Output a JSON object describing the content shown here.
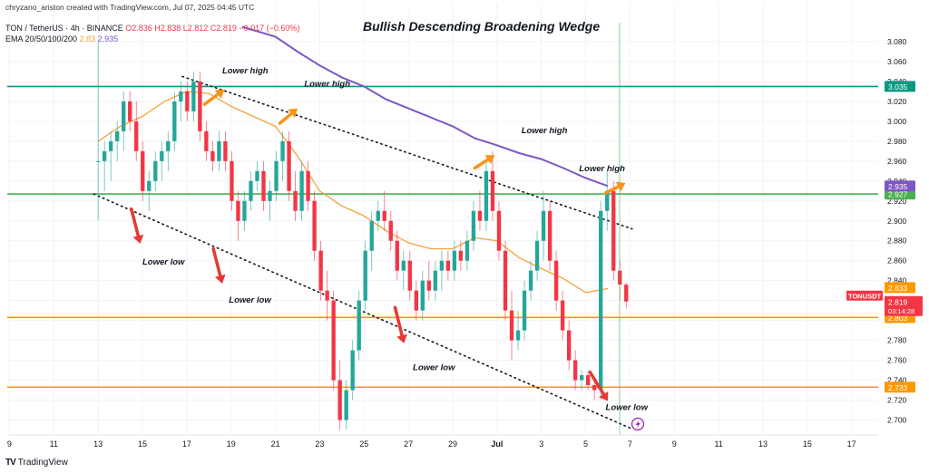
{
  "header": {
    "credit": "chryzano_ariston created with TradingView.com, Jul 07, 2025 04:45 UTC",
    "symbol_line": "TON / TetherUS · 4h · BINANCE",
    "ohlc": "O2.836  H2.838  L2.812  C2.819  −0.017 (−0.60%)",
    "ema_label": "EMA 20/50/100/200",
    "ema_value_1": "2.83",
    "ema_value_2": "2.935"
  },
  "footer": {
    "brand": "TradingView",
    "brand_logo": "TV"
  },
  "colors": {
    "up": "#26a69a",
    "down": "#f23645",
    "ema_orange": "#f7a23b",
    "ema_purple": "#7e57c2",
    "teal_line": "#089981",
    "green_line": "#4caf50",
    "orange_line": "#ff9800",
    "arrow_up": "#f7931a",
    "arrow_down": "#e53935"
  },
  "chart_data": {
    "type": "candlestick",
    "title": "Bullish Descending Broadening Wedge",
    "symbol": "TONUSDT",
    "timeframe": "4h",
    "ylim": [
      2.685,
      3.1
    ],
    "y_ticks": [
      "2.700",
      "2.720",
      "2.740",
      "2.760",
      "2.780",
      "2.800",
      "2.820",
      "2.840",
      "2.860",
      "2.880",
      "2.900",
      "2.920",
      "2.940",
      "2.960",
      "2.980",
      "3.000",
      "3.020",
      "3.040",
      "3.060",
      "3.080"
    ],
    "x_ticks": [
      {
        "label": "9",
        "day": 9
      },
      {
        "label": "11",
        "day": 11
      },
      {
        "label": "13",
        "day": 13
      },
      {
        "label": "15",
        "day": 15
      },
      {
        "label": "17",
        "day": 17
      },
      {
        "label": "19",
        "day": 19
      },
      {
        "label": "21",
        "day": 21
      },
      {
        "label": "23",
        "day": 23
      },
      {
        "label": "25",
        "day": 25
      },
      {
        "label": "27",
        "day": 27
      },
      {
        "label": "29",
        "day": 29
      },
      {
        "label": "Jul",
        "day": 31
      },
      {
        "label": "3",
        "day": 33
      },
      {
        "label": "5",
        "day": 35
      },
      {
        "label": "7",
        "day": 37
      },
      {
        "label": "9",
        "day": 39
      },
      {
        "label": "11",
        "day": 41
      },
      {
        "label": "13",
        "day": 43
      },
      {
        "label": "15",
        "day": 45
      },
      {
        "label": "17",
        "day": 47
      }
    ],
    "horizontal_levels": [
      {
        "value": 3.035,
        "label": "3.035",
        "color": "#089981"
      },
      {
        "value": 2.927,
        "label": "2.927",
        "color": "#4caf50"
      },
      {
        "value": 2.803,
        "label": "2.803",
        "color": "#ff9800"
      },
      {
        "value": 2.733,
        "label": "2.733",
        "color": "#ff9800"
      }
    ],
    "price_badges": [
      {
        "value": 2.935,
        "label": "2.935",
        "color": "#7e57c2"
      },
      {
        "value": 2.833,
        "label": "2.833",
        "color": "#ff9800"
      },
      {
        "value": 2.819,
        "label": "2.819",
        "color": "#f23645",
        "tag": "TONUSDT",
        "sub": "03:14:28"
      }
    ],
    "trendlines": [
      {
        "name": "upper",
        "from": [
          16.8,
          3.045
        ],
        "to": [
          37.1,
          2.892
        ]
      },
      {
        "name": "lower",
        "from": [
          12.8,
          2.927
        ],
        "to": [
          37.0,
          2.692
        ]
      }
    ],
    "annotations": [
      {
        "text": "Lower high",
        "day": 18.6,
        "price": 3.048
      },
      {
        "text": "Lower high",
        "day": 22.3,
        "price": 3.035
      },
      {
        "text": "Lower high",
        "day": 32.1,
        "price": 2.988
      },
      {
        "text": "Lower high",
        "day": 34.7,
        "price": 2.95
      },
      {
        "text": "Lower low",
        "day": 15.0,
        "price": 2.856
      },
      {
        "text": "Lower low",
        "day": 18.9,
        "price": 2.818
      },
      {
        "text": "Lower low",
        "day": 27.2,
        "price": 2.75
      },
      {
        "text": "Lower low",
        "day": 35.9,
        "price": 2.71
      }
    ],
    "arrows": [
      {
        "dir": "up",
        "from": [
          17.8,
          3.017
        ],
        "to": [
          18.7,
          3.032
        ]
      },
      {
        "dir": "up",
        "from": [
          21.2,
          2.998
        ],
        "to": [
          22.0,
          3.013
        ]
      },
      {
        "dir": "up",
        "from": [
          30.0,
          2.953
        ],
        "to": [
          30.9,
          2.966
        ]
      },
      {
        "dir": "up",
        "from": [
          35.9,
          2.928
        ],
        "to": [
          36.8,
          2.938
        ]
      },
      {
        "dir": "down",
        "from": [
          14.5,
          2.912
        ],
        "to": [
          14.9,
          2.877
        ]
      },
      {
        "dir": "down",
        "from": [
          18.2,
          2.872
        ],
        "to": [
          18.6,
          2.837
        ]
      },
      {
        "dir": "down",
        "from": [
          26.4,
          2.813
        ],
        "to": [
          26.8,
          2.777
        ]
      },
      {
        "dir": "down",
        "from": [
          35.2,
          2.748
        ],
        "to": [
          36.0,
          2.719
        ]
      }
    ],
    "ema_fast": [
      [
        13,
        2.98
      ],
      [
        14,
        2.995
      ],
      [
        15,
        3.005
      ],
      [
        16,
        3.02
      ],
      [
        17,
        3.03
      ],
      [
        18,
        3.028
      ],
      [
        19,
        3.015
      ],
      [
        20,
        3.005
      ],
      [
        21,
        2.995
      ],
      [
        22,
        2.965
      ],
      [
        23,
        2.93
      ],
      [
        24,
        2.915
      ],
      [
        25,
        2.905
      ],
      [
        26,
        2.89
      ],
      [
        27,
        2.878
      ],
      [
        28,
        2.872
      ],
      [
        29,
        2.872
      ],
      [
        30,
        2.883
      ],
      [
        31,
        2.88
      ],
      [
        32,
        2.863
      ],
      [
        33,
        2.852
      ],
      [
        34,
        2.842
      ],
      [
        35,
        2.828
      ],
      [
        36,
        2.832
      ]
    ],
    "ema_slow": [
      [
        19.5,
        3.095
      ],
      [
        21,
        3.085
      ],
      [
        22,
        3.07
      ],
      [
        23,
        3.056
      ],
      [
        24,
        3.044
      ],
      [
        25,
        3.035
      ],
      [
        26,
        3.022
      ],
      [
        27,
        3.013
      ],
      [
        28,
        3.004
      ],
      [
        29,
        2.995
      ],
      [
        30,
        2.983
      ],
      [
        31,
        2.976
      ],
      [
        32,
        2.968
      ],
      [
        33,
        2.962
      ],
      [
        34,
        2.953
      ],
      [
        35,
        2.943
      ],
      [
        36,
        2.935
      ]
    ],
    "candles": [
      {
        "o": 2.96,
        "h": 3.08,
        "l": 2.9,
        "c": 2.96
      },
      {
        "o": 2.96,
        "h": 2.98,
        "l": 2.93,
        "c": 2.97
      },
      {
        "o": 2.97,
        "h": 2.99,
        "l": 2.94,
        "c": 2.98
      },
      {
        "o": 2.98,
        "h": 3.0,
        "l": 2.96,
        "c": 2.99
      },
      {
        "o": 2.99,
        "h": 3.03,
        "l": 2.97,
        "c": 3.02
      },
      {
        "o": 3.02,
        "h": 3.03,
        "l": 2.99,
        "c": 3.0
      },
      {
        "o": 3.0,
        "h": 3.02,
        "l": 2.96,
        "c": 2.97
      },
      {
        "o": 2.97,
        "h": 2.98,
        "l": 2.92,
        "c": 2.93
      },
      {
        "o": 2.93,
        "h": 2.95,
        "l": 2.91,
        "c": 2.94
      },
      {
        "o": 2.94,
        "h": 2.97,
        "l": 2.93,
        "c": 2.96
      },
      {
        "o": 2.96,
        "h": 2.98,
        "l": 2.94,
        "c": 2.97
      },
      {
        "o": 2.97,
        "h": 2.99,
        "l": 2.95,
        "c": 2.98
      },
      {
        "o": 2.98,
        "h": 3.03,
        "l": 2.97,
        "c": 3.02
      },
      {
        "o": 3.02,
        "h": 3.04,
        "l": 3.0,
        "c": 3.03
      },
      {
        "o": 3.03,
        "h": 3.04,
        "l": 3.0,
        "c": 3.01
      },
      {
        "o": 3.01,
        "h": 3.05,
        "l": 3.0,
        "c": 3.04
      },
      {
        "o": 3.04,
        "h": 3.05,
        "l": 2.98,
        "c": 2.99
      },
      {
        "o": 2.99,
        "h": 3.0,
        "l": 2.96,
        "c": 2.97
      },
      {
        "o": 2.97,
        "h": 2.98,
        "l": 2.95,
        "c": 2.96
      },
      {
        "o": 2.96,
        "h": 2.99,
        "l": 2.95,
        "c": 2.98
      },
      {
        "o": 2.98,
        "h": 2.99,
        "l": 2.95,
        "c": 2.96
      },
      {
        "o": 2.96,
        "h": 2.97,
        "l": 2.91,
        "c": 2.92
      },
      {
        "o": 2.92,
        "h": 2.93,
        "l": 2.88,
        "c": 2.9
      },
      {
        "o": 2.9,
        "h": 2.93,
        "l": 2.89,
        "c": 2.92
      },
      {
        "o": 2.92,
        "h": 2.95,
        "l": 2.91,
        "c": 2.94
      },
      {
        "o": 2.94,
        "h": 2.96,
        "l": 2.93,
        "c": 2.95
      },
      {
        "o": 2.95,
        "h": 2.96,
        "l": 2.91,
        "c": 2.92
      },
      {
        "o": 2.92,
        "h": 2.94,
        "l": 2.9,
        "c": 2.93
      },
      {
        "o": 2.93,
        "h": 2.97,
        "l": 2.92,
        "c": 2.96
      },
      {
        "o": 2.96,
        "h": 2.99,
        "l": 2.94,
        "c": 2.98
      },
      {
        "o": 2.98,
        "h": 2.99,
        "l": 2.92,
        "c": 2.93
      },
      {
        "o": 2.93,
        "h": 2.95,
        "l": 2.9,
        "c": 2.91
      },
      {
        "o": 2.91,
        "h": 2.96,
        "l": 2.9,
        "c": 2.95
      },
      {
        "o": 2.95,
        "h": 2.96,
        "l": 2.91,
        "c": 2.92
      },
      {
        "o": 2.92,
        "h": 2.93,
        "l": 2.86,
        "c": 2.87
      },
      {
        "o": 2.87,
        "h": 2.88,
        "l": 2.82,
        "c": 2.83
      },
      {
        "o": 2.83,
        "h": 2.85,
        "l": 2.8,
        "c": 2.82
      },
      {
        "o": 2.82,
        "h": 2.83,
        "l": 2.73,
        "c": 2.74
      },
      {
        "o": 2.74,
        "h": 2.76,
        "l": 2.69,
        "c": 2.7
      },
      {
        "o": 2.7,
        "h": 2.74,
        "l": 2.69,
        "c": 2.73
      },
      {
        "o": 2.73,
        "h": 2.78,
        "l": 2.72,
        "c": 2.77
      },
      {
        "o": 2.77,
        "h": 2.83,
        "l": 2.76,
        "c": 2.82
      },
      {
        "o": 2.82,
        "h": 2.88,
        "l": 2.81,
        "c": 2.87
      },
      {
        "o": 2.87,
        "h": 2.91,
        "l": 2.85,
        "c": 2.9
      },
      {
        "o": 2.9,
        "h": 2.92,
        "l": 2.89,
        "c": 2.91
      },
      {
        "o": 2.91,
        "h": 2.93,
        "l": 2.89,
        "c": 2.9
      },
      {
        "o": 2.9,
        "h": 2.91,
        "l": 2.87,
        "c": 2.88
      },
      {
        "o": 2.88,
        "h": 2.89,
        "l": 2.84,
        "c": 2.85
      },
      {
        "o": 2.85,
        "h": 2.87,
        "l": 2.83,
        "c": 2.86
      },
      {
        "o": 2.86,
        "h": 2.87,
        "l": 2.82,
        "c": 2.83
      },
      {
        "o": 2.83,
        "h": 2.84,
        "l": 2.8,
        "c": 2.81
      },
      {
        "o": 2.81,
        "h": 2.85,
        "l": 2.8,
        "c": 2.84
      },
      {
        "o": 2.84,
        "h": 2.86,
        "l": 2.82,
        "c": 2.83
      },
      {
        "o": 2.83,
        "h": 2.86,
        "l": 2.82,
        "c": 2.85
      },
      {
        "o": 2.85,
        "h": 2.87,
        "l": 2.83,
        "c": 2.86
      },
      {
        "o": 2.86,
        "h": 2.87,
        "l": 2.84,
        "c": 2.85
      },
      {
        "o": 2.85,
        "h": 2.88,
        "l": 2.84,
        "c": 2.87
      },
      {
        "o": 2.87,
        "h": 2.88,
        "l": 2.85,
        "c": 2.86
      },
      {
        "o": 2.86,
        "h": 2.89,
        "l": 2.85,
        "c": 2.88
      },
      {
        "o": 2.88,
        "h": 2.92,
        "l": 2.87,
        "c": 2.91
      },
      {
        "o": 2.91,
        "h": 2.93,
        "l": 2.89,
        "c": 2.9
      },
      {
        "o": 2.9,
        "h": 2.96,
        "l": 2.89,
        "c": 2.95
      },
      {
        "o": 2.95,
        "h": 2.97,
        "l": 2.9,
        "c": 2.91
      },
      {
        "o": 2.91,
        "h": 2.92,
        "l": 2.86,
        "c": 2.87
      },
      {
        "o": 2.87,
        "h": 2.88,
        "l": 2.8,
        "c": 2.81
      },
      {
        "o": 2.81,
        "h": 2.83,
        "l": 2.76,
        "c": 2.78
      },
      {
        "o": 2.78,
        "h": 2.81,
        "l": 2.77,
        "c": 2.79
      },
      {
        "o": 2.79,
        "h": 2.84,
        "l": 2.78,
        "c": 2.83
      },
      {
        "o": 2.83,
        "h": 2.86,
        "l": 2.82,
        "c": 2.85
      },
      {
        "o": 2.85,
        "h": 2.89,
        "l": 2.84,
        "c": 2.88
      },
      {
        "o": 2.88,
        "h": 2.93,
        "l": 2.86,
        "c": 2.91
      },
      {
        "o": 2.91,
        "h": 2.92,
        "l": 2.85,
        "c": 2.86
      },
      {
        "o": 2.86,
        "h": 2.87,
        "l": 2.81,
        "c": 2.82
      },
      {
        "o": 2.82,
        "h": 2.83,
        "l": 2.78,
        "c": 2.79
      },
      {
        "o": 2.79,
        "h": 2.8,
        "l": 2.75,
        "c": 2.76
      },
      {
        "o": 2.76,
        "h": 2.77,
        "l": 2.73,
        "c": 2.74
      },
      {
        "o": 2.74,
        "h": 2.75,
        "l": 2.73,
        "c": 2.745
      },
      {
        "o": 2.745,
        "h": 2.75,
        "l": 2.73,
        "c": 2.735
      },
      {
        "o": 2.735,
        "h": 2.74,
        "l": 2.72,
        "c": 2.73
      },
      {
        "o": 2.73,
        "h": 2.92,
        "l": 2.72,
        "c": 2.91
      },
      {
        "o": 2.91,
        "h": 2.95,
        "l": 2.89,
        "c": 2.93
      },
      {
        "o": 2.93,
        "h": 2.94,
        "l": 2.84,
        "c": 2.85
      },
      {
        "o": 2.85,
        "h": 2.86,
        "l": 2.82,
        "c": 2.836
      },
      {
        "o": 2.836,
        "h": 2.838,
        "l": 2.812,
        "c": 2.819
      }
    ]
  }
}
